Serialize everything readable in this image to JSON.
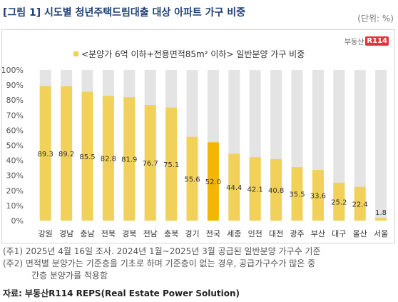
{
  "title": "[그림 1] 시도별 청년주택드림대출 대상 아파트 가구 비중",
  "unit": "(단위: %)",
  "logo": {
    "text": "부동산",
    "badge": "R114"
  },
  "notes": [
    "(주1) 2025년 4월 16일 조사. 2024년 1월~2025년 3월 공급된 일반분양 가구수 기준",
    "(주2) 면적별 분양가는 기준층을 기초로 하며 기준층이 없는 경우, 공급가구수가 많은 중",
    "간층 분양가를 적용함"
  ],
  "source": "자료: 부동산R114 REPS(Real Estate Power Solution)",
  "colors": {
    "bar": "#f1d159",
    "highlight": "#f2b705",
    "background_bar": "#e4e4e4",
    "title": "#1f3f74"
  },
  "chart_data": {
    "type": "bar",
    "title": "",
    "legend": "<분양가 6억 이하+전용면적85m² 이하> 일반분양 가구 비중",
    "categories": [
      "강원",
      "경남",
      "충남",
      "전북",
      "경북",
      "전남",
      "충북",
      "경기",
      "전국",
      "세종",
      "인천",
      "대전",
      "광주",
      "부산",
      "대구",
      "울산",
      "서울"
    ],
    "values": [
      89.3,
      89.2,
      85.5,
      82.8,
      81.9,
      76.7,
      75.1,
      55.6,
      52.0,
      44.4,
      42.1,
      40.8,
      35.5,
      33.6,
      25.2,
      22.4,
      1.8
    ],
    "value_labels": [
      "89.3",
      "89.2",
      "85.5",
      "82.8",
      "81.9",
      "76.7",
      "75.1",
      "55.6",
      "52.0",
      "44.4",
      "42.1",
      "40.8",
      "35.5",
      "33.6",
      "25.2",
      "22.4",
      "1.8"
    ],
    "highlight_category": "전국",
    "ylim": [
      0,
      100
    ],
    "yticks": [
      "0%",
      "10%",
      "20%",
      "30%",
      "40%",
      "50%",
      "60%",
      "70%",
      "80%",
      "90%",
      "100%"
    ],
    "grid": false
  }
}
